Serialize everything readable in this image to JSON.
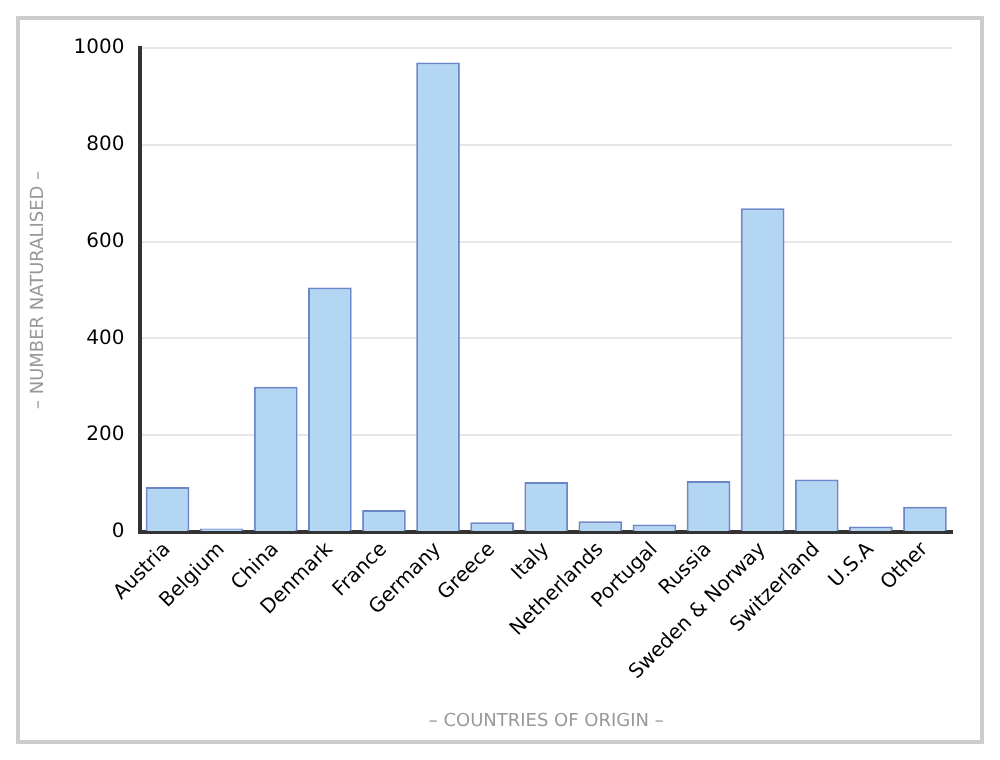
{
  "chart_data": {
    "type": "bar",
    "xlabel": "– COUNTRIES OF ORIGIN –",
    "ylabel": "– NUMBER NATURALISED –",
    "categories": [
      "Austria",
      "Belgium",
      "China",
      "Denmark",
      "France",
      "Germany",
      "Greece",
      "Italy",
      "Netherlands",
      "Portugal",
      "Russia",
      "Sweden & Norway",
      "Switzerland",
      "U.S.A",
      "Other"
    ],
    "values": [
      93,
      7,
      300,
      505,
      45,
      970,
      20,
      103,
      22,
      15,
      105,
      669,
      108,
      11,
      52
    ],
    "color": "#b3d6f3",
    "ylim": [
      0,
      1000
    ],
    "yticks": [
      0,
      200,
      400,
      600,
      800,
      1000
    ],
    "grid": "y",
    "legend": false
  }
}
